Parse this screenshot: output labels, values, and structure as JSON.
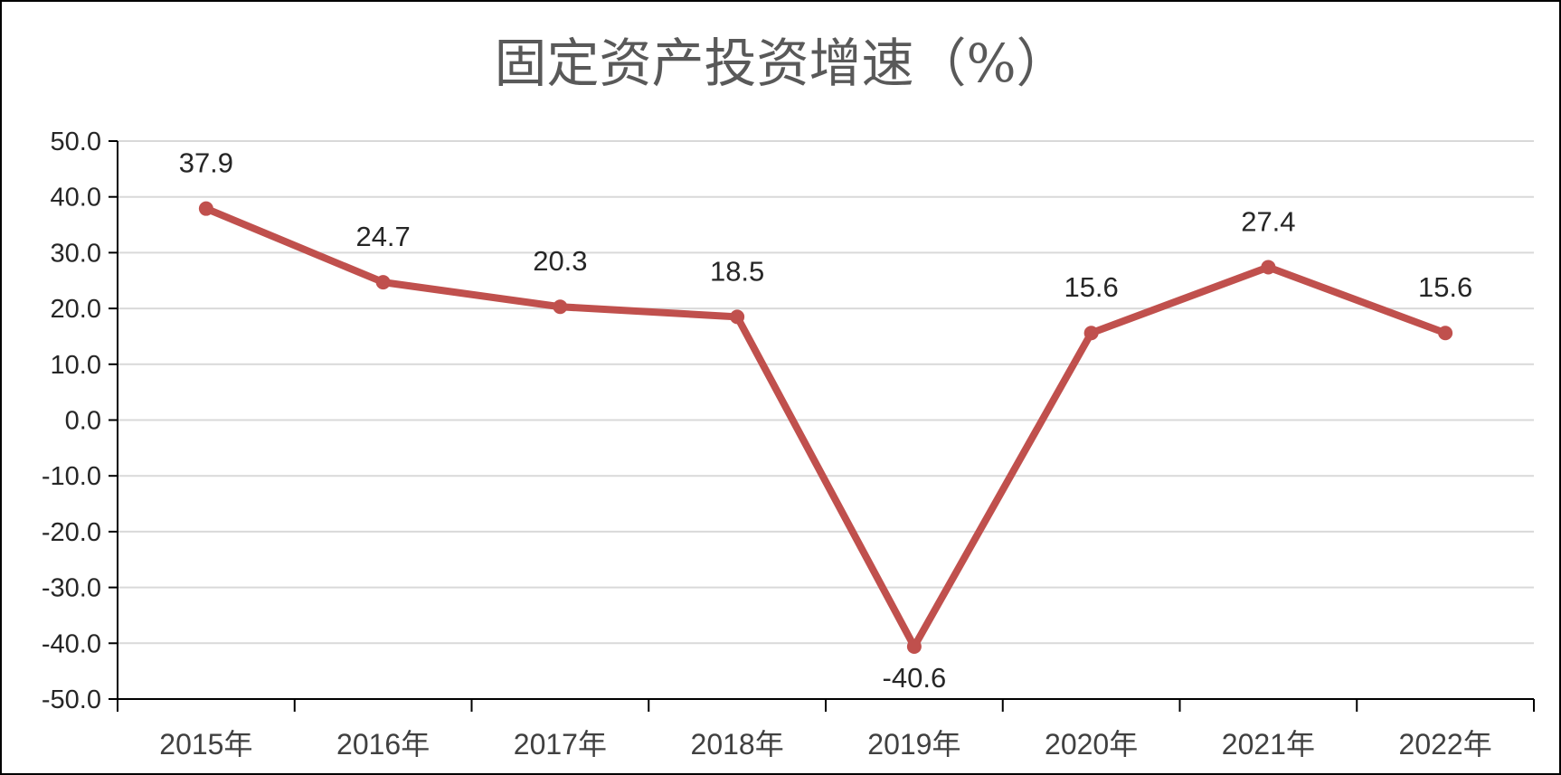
{
  "chart_data": {
    "type": "line",
    "title": "固定资产投资增速（%）",
    "categories": [
      "2015年",
      "2016年",
      "2017年",
      "2018年",
      "2019年",
      "2020年",
      "2021年",
      "2022年"
    ],
    "series": [
      {
        "values": [
          37.9,
          24.7,
          20.3,
          18.5,
          -40.6,
          15.6,
          27.4,
          15.6
        ]
      }
    ],
    "data_labels": [
      "37.9",
      "24.7",
      "20.3",
      "18.5",
      "-40.6",
      "15.6",
      "27.4",
      "15.6"
    ],
    "y_ticks": [
      "50.0",
      "40.0",
      "30.0",
      "20.0",
      "10.0",
      "0.0",
      "-10.0",
      "-20.0",
      "-30.0",
      "-40.0",
      "-50.0"
    ],
    "ylim": [
      -50,
      50
    ],
    "grid": true,
    "legend": "none",
    "line_color": "#c0504d"
  }
}
